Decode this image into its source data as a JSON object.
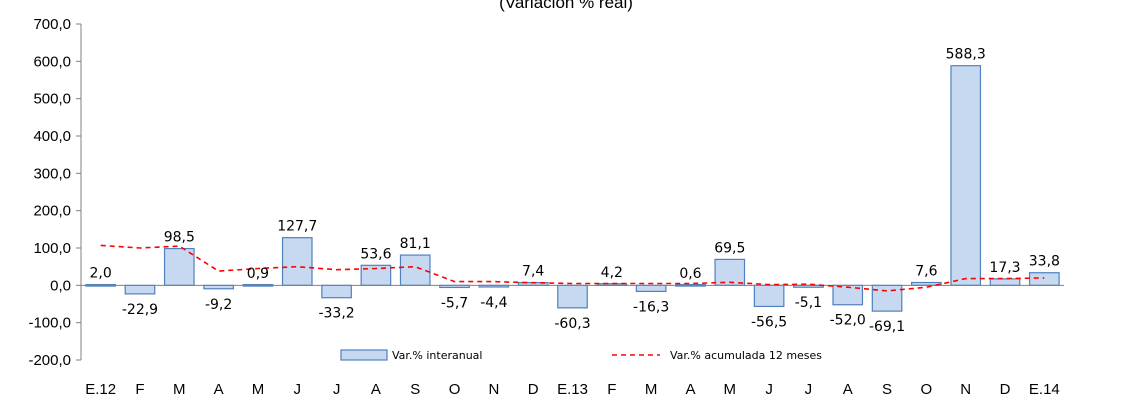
{
  "chart_data": {
    "type": "bar",
    "title": "(Variación % real)",
    "categories": [
      "E.12",
      "F",
      "M",
      "A",
      "M",
      "J",
      "J",
      "A",
      "S",
      "O",
      "N",
      "D",
      "E.13",
      "F",
      "M",
      "A",
      "M",
      "J",
      "J",
      "A",
      "S",
      "O",
      "N",
      "D",
      "E.14"
    ],
    "series": [
      {
        "name": "Var.% interanual",
        "type": "bar",
        "color": "#c6d9f1",
        "border_color": "#4f81bd",
        "values": [
          2.0,
          -22.9,
          98.5,
          -9.2,
          0.9,
          127.7,
          -33.2,
          53.6,
          81.1,
          -5.7,
          -4.4,
          7.4,
          -60.3,
          4.2,
          -16.3,
          0.6,
          69.5,
          -56.5,
          -5.1,
          -52.0,
          -69.1,
          7.6,
          588.3,
          17.3,
          33.8
        ]
      },
      {
        "name": "Var.% acumulada 12 meses",
        "type": "line",
        "style": "dashed",
        "color": "#ff0000",
        "values": [
          107,
          100,
          105,
          38,
          45,
          50,
          42,
          45,
          50,
          10,
          10,
          7,
          5,
          5,
          5,
          5,
          8,
          2,
          3,
          -5,
          -15,
          -5,
          18,
          18,
          20
        ]
      }
    ],
    "data_labels": [
      "2,0",
      "-22,9",
      "98,5",
      "-9,2",
      "0,9",
      "127,7",
      "-33,2",
      "53,6",
      "81,1",
      "-5,7",
      "-4,4",
      "7,4",
      "-60,3",
      "4,2",
      "-16,3",
      "0,6",
      "69,5",
      "-56,5",
      "-5,1",
      "-52,0",
      "-69,1",
      "7,6",
      "588,3",
      "17,3",
      "33,8"
    ],
    "ylim": [
      -200,
      700
    ],
    "yticks": [
      -200,
      -100,
      0,
      100,
      200,
      300,
      400,
      500,
      600,
      700
    ],
    "ytick_labels": [
      "-200,0",
      "-100,0",
      "0,0",
      "100,0",
      "200,0",
      "300,0",
      "400,0",
      "500,0",
      "600,0",
      "700,0"
    ],
    "legend_position": "bottom-center",
    "grid": false
  }
}
